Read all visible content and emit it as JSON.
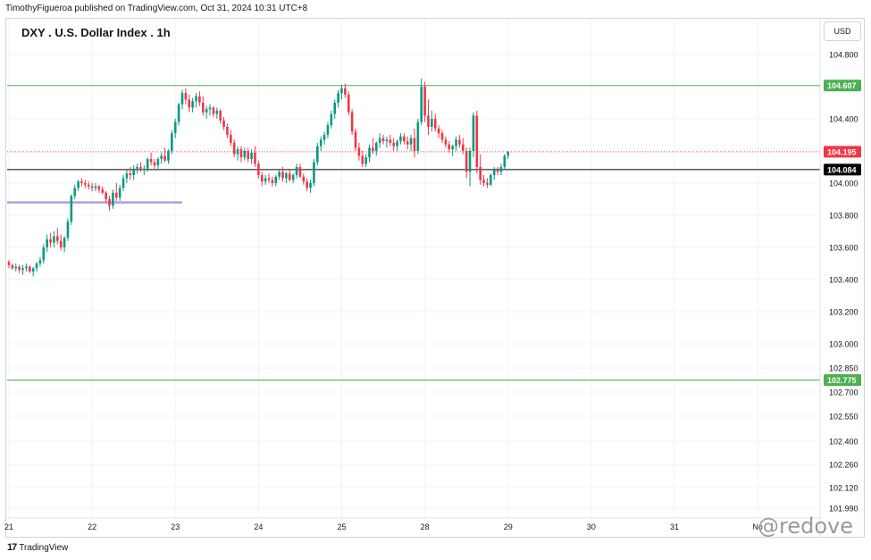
{
  "header": {
    "publisher_line": "TimothyFigueroa published on TradingView.com, Oct 31, 2024 10:31 UTC+8",
    "title": "DXY . U.S. Dollar Index . 1h",
    "currency": "USD"
  },
  "footer": {
    "brand": "TradingView",
    "watermark": "@redove"
  },
  "colors": {
    "up": "#089981",
    "down": "#f23645",
    "grid": "#f0f3fa",
    "resistance": "#4caf50",
    "current": "#f23645",
    "level": "#000000",
    "purple": "#b39ddb"
  },
  "chart_data": {
    "type": "candlestick",
    "y_ticks": [
      {
        "label": "104.800",
        "value": 104.8
      },
      {
        "label": "104.400",
        "value": 104.4
      },
      {
        "label": "104.000",
        "value": 104.0
      },
      {
        "label": "103.800",
        "value": 103.8
      },
      {
        "label": "103.600",
        "value": 103.6
      },
      {
        "label": "103.400",
        "value": 103.4
      },
      {
        "label": "103.200",
        "value": 103.2
      },
      {
        "label": "103.000",
        "value": 103.0
      },
      {
        "label": "102.850",
        "value": 102.85
      },
      {
        "label": "102.700",
        "value": 102.7
      },
      {
        "label": "102.550",
        "value": 102.55
      },
      {
        "label": "102.400",
        "value": 102.4
      },
      {
        "label": "102.260",
        "value": 102.26
      },
      {
        "label": "102.120",
        "value": 102.12
      },
      {
        "label": "101.990",
        "value": 101.99
      }
    ],
    "x_ticks": [
      {
        "label": "21",
        "x": 0
      },
      {
        "label": "22",
        "x": 24
      },
      {
        "label": "23",
        "x": 48
      },
      {
        "label": "24",
        "x": 72
      },
      {
        "label": "25",
        "x": 96
      },
      {
        "label": "28",
        "x": 120
      },
      {
        "label": "29",
        "x": 144
      },
      {
        "label": "30",
        "x": 168
      },
      {
        "label": "31",
        "x": 192
      },
      {
        "label": "No",
        "x": 216
      }
    ],
    "price_labels": [
      {
        "label": "104.607",
        "value": 104.607,
        "color": "#4caf50"
      },
      {
        "label": "104.195",
        "value": 104.195,
        "color": "#f23645"
      },
      {
        "label": "104.084",
        "value": 104.084,
        "color": "#000000"
      },
      {
        "label": "102.775",
        "value": 102.775,
        "color": "#4caf50"
      }
    ],
    "horizontal_lines": [
      {
        "value": 104.607,
        "style": "solid",
        "color": "#4caf50",
        "x_start": 0
      },
      {
        "value": 104.195,
        "style": "dotted",
        "color": "#f23645",
        "x_start": 0
      },
      {
        "value": 104.084,
        "style": "solid",
        "color": "#000000",
        "x_start": 0
      },
      {
        "value": 102.775,
        "style": "solid",
        "color": "#4caf50",
        "x_start": 0
      },
      {
        "value": 103.88,
        "style": "thick",
        "color": "#b39ddb",
        "x_start": 0,
        "x_end": 50
      }
    ],
    "ohlc": [
      [
        0,
        103.51,
        103.52,
        103.47,
        103.49
      ],
      [
        1,
        103.49,
        103.5,
        103.46,
        103.47
      ],
      [
        2,
        103.47,
        103.5,
        103.45,
        103.48
      ],
      [
        3,
        103.48,
        103.49,
        103.44,
        103.46
      ],
      [
        4,
        103.46,
        103.49,
        103.43,
        103.47
      ],
      [
        5,
        103.47,
        103.5,
        103.45,
        103.48
      ],
      [
        6,
        103.48,
        103.49,
        103.44,
        103.45
      ],
      [
        7,
        103.45,
        103.48,
        103.42,
        103.47
      ],
      [
        8,
        103.47,
        103.51,
        103.45,
        103.5
      ],
      [
        9,
        103.5,
        103.54,
        103.48,
        103.52
      ],
      [
        10,
        103.52,
        103.62,
        103.5,
        103.6
      ],
      [
        11,
        103.6,
        103.68,
        103.57,
        103.65
      ],
      [
        12,
        103.65,
        103.69,
        103.6,
        103.63
      ],
      [
        13,
        103.63,
        103.7,
        103.6,
        103.67
      ],
      [
        14,
        103.67,
        103.72,
        103.62,
        103.64
      ],
      [
        15,
        103.64,
        103.68,
        103.58,
        103.6
      ],
      [
        16,
        103.6,
        103.67,
        103.57,
        103.66
      ],
      [
        17,
        103.66,
        103.78,
        103.64,
        103.76
      ],
      [
        18,
        103.76,
        103.93,
        103.74,
        103.92
      ],
      [
        19,
        103.92,
        103.99,
        103.9,
        103.97
      ],
      [
        20,
        103.97,
        104.02,
        103.95,
        104.01
      ],
      [
        21,
        104.01,
        104.03,
        103.98,
        104.0
      ],
      [
        22,
        104.0,
        104.02,
        103.97,
        103.99
      ],
      [
        23,
        103.99,
        104.01,
        103.96,
        103.98
      ],
      [
        24,
        103.98,
        104.0,
        103.95,
        103.97
      ],
      [
        25,
        103.97,
        104.0,
        103.95,
        103.98
      ],
      [
        26,
        103.98,
        103.99,
        103.94,
        103.96
      ],
      [
        27,
        103.96,
        103.98,
        103.93,
        103.94
      ],
      [
        28,
        103.94,
        103.95,
        103.88,
        103.9
      ],
      [
        29,
        103.9,
        103.92,
        103.83,
        103.86
      ],
      [
        30,
        103.86,
        103.96,
        103.84,
        103.94
      ],
      [
        31,
        103.94,
        104.0,
        103.89,
        103.91
      ],
      [
        32,
        103.91,
        103.99,
        103.89,
        103.97
      ],
      [
        33,
        103.97,
        104.05,
        103.95,
        104.03
      ],
      [
        34,
        104.03,
        104.08,
        104.0,
        104.06
      ],
      [
        35,
        104.06,
        104.1,
        104.02,
        104.05
      ],
      [
        36,
        104.05,
        104.11,
        104.02,
        104.09
      ],
      [
        37,
        104.09,
        104.12,
        104.06,
        104.1
      ],
      [
        38,
        104.1,
        104.13,
        104.07,
        104.08
      ],
      [
        39,
        104.08,
        104.11,
        104.05,
        104.09
      ],
      [
        40,
        104.09,
        104.16,
        104.07,
        104.15
      ],
      [
        41,
        104.15,
        104.19,
        104.11,
        104.13
      ],
      [
        42,
        104.13,
        104.15,
        104.09,
        104.11
      ],
      [
        43,
        104.11,
        104.16,
        104.08,
        104.15
      ],
      [
        44,
        104.15,
        104.19,
        104.12,
        104.17
      ],
      [
        45,
        104.17,
        104.22,
        104.13,
        104.14
      ],
      [
        46,
        104.14,
        104.21,
        104.12,
        104.2
      ],
      [
        47,
        104.2,
        104.33,
        104.18,
        104.31
      ],
      [
        48,
        104.31,
        104.4,
        104.28,
        104.38
      ],
      [
        49,
        104.38,
        104.5,
        104.36,
        104.49
      ],
      [
        50,
        104.49,
        104.58,
        104.46,
        104.56
      ],
      [
        51,
        104.56,
        104.59,
        104.49,
        104.52
      ],
      [
        52,
        104.52,
        104.55,
        104.44,
        104.47
      ],
      [
        53,
        104.47,
        104.53,
        104.44,
        104.51
      ],
      [
        54,
        104.51,
        104.56,
        104.47,
        104.54
      ],
      [
        55,
        104.54,
        104.57,
        104.48,
        104.5
      ],
      [
        56,
        104.5,
        104.54,
        104.42,
        104.44
      ],
      [
        57,
        104.44,
        104.48,
        104.4,
        104.46
      ],
      [
        58,
        104.46,
        104.49,
        104.42,
        104.47
      ],
      [
        59,
        104.47,
        104.48,
        104.41,
        104.43
      ],
      [
        60,
        104.43,
        104.47,
        104.4,
        104.45
      ],
      [
        61,
        104.45,
        104.46,
        104.37,
        104.39
      ],
      [
        62,
        104.39,
        104.41,
        104.33,
        104.35
      ],
      [
        63,
        104.35,
        104.37,
        104.28,
        104.3
      ],
      [
        64,
        104.3,
        104.33,
        104.23,
        104.25
      ],
      [
        65,
        104.25,
        104.27,
        104.16,
        104.18
      ],
      [
        66,
        104.18,
        104.23,
        104.14,
        104.21
      ],
      [
        67,
        104.21,
        104.23,
        104.13,
        104.16
      ],
      [
        68,
        104.16,
        104.22,
        104.14,
        104.2
      ],
      [
        69,
        104.2,
        104.22,
        104.13,
        104.15
      ],
      [
        70,
        104.15,
        104.21,
        104.12,
        104.19
      ],
      [
        71,
        104.19,
        104.23,
        104.1,
        104.12
      ],
      [
        72,
        104.12,
        104.14,
        104.03,
        104.05
      ],
      [
        73,
        104.05,
        104.07,
        103.98,
        104.01
      ],
      [
        74,
        104.01,
        104.05,
        103.99,
        104.03
      ],
      [
        75,
        104.03,
        104.06,
        104.0,
        104.02
      ],
      [
        76,
        104.02,
        104.04,
        103.98,
        104.0
      ],
      [
        77,
        104.0,
        104.05,
        103.98,
        104.04
      ],
      [
        78,
        104.04,
        104.09,
        104.02,
        104.07
      ],
      [
        79,
        104.07,
        104.1,
        104.01,
        104.03
      ],
      [
        80,
        104.03,
        104.07,
        104.0,
        104.06
      ],
      [
        81,
        104.06,
        104.08,
        104.01,
        104.02
      ],
      [
        82,
        104.02,
        104.06,
        104.0,
        104.05
      ],
      [
        83,
        104.05,
        104.12,
        104.03,
        104.1
      ],
      [
        84,
        104.1,
        104.12,
        104.03,
        104.04
      ],
      [
        85,
        104.04,
        104.06,
        103.99,
        104.01
      ],
      [
        86,
        104.01,
        104.03,
        103.95,
        103.97
      ],
      [
        87,
        103.97,
        104.02,
        103.94,
        104.0
      ],
      [
        88,
        104.0,
        104.15,
        103.98,
        104.13
      ],
      [
        89,
        104.13,
        104.25,
        104.11,
        104.23
      ],
      [
        90,
        104.23,
        104.29,
        104.2,
        104.27
      ],
      [
        91,
        104.27,
        104.32,
        104.24,
        104.3
      ],
      [
        92,
        104.3,
        104.38,
        104.28,
        104.36
      ],
      [
        93,
        104.36,
        104.45,
        104.34,
        104.43
      ],
      [
        94,
        104.43,
        104.52,
        104.4,
        104.5
      ],
      [
        95,
        104.5,
        104.58,
        104.47,
        104.56
      ],
      [
        96,
        104.56,
        104.61,
        104.52,
        104.59
      ],
      [
        97,
        104.59,
        104.62,
        104.53,
        104.55
      ],
      [
        98,
        104.55,
        104.57,
        104.42,
        104.44
      ],
      [
        99,
        104.44,
        104.46,
        104.3,
        104.32
      ],
      [
        100,
        104.32,
        104.34,
        104.2,
        104.22
      ],
      [
        101,
        104.22,
        104.25,
        104.14,
        104.17
      ],
      [
        102,
        104.17,
        104.2,
        104.1,
        104.12
      ],
      [
        103,
        104.12,
        104.18,
        104.1,
        104.16
      ],
      [
        104,
        104.16,
        104.24,
        104.13,
        104.22
      ],
      [
        105,
        104.22,
        104.28,
        104.18,
        104.2
      ],
      [
        106,
        104.2,
        104.26,
        104.17,
        104.25
      ],
      [
        107,
        104.25,
        104.31,
        104.22,
        104.28
      ],
      [
        108,
        104.28,
        104.3,
        104.24,
        104.26
      ],
      [
        109,
        104.26,
        104.29,
        104.22,
        104.27
      ],
      [
        110,
        104.27,
        104.3,
        104.23,
        104.25
      ],
      [
        111,
        104.25,
        104.28,
        104.2,
        104.23
      ],
      [
        112,
        104.23,
        104.27,
        104.2,
        104.26
      ],
      [
        113,
        104.26,
        104.31,
        104.24,
        104.29
      ],
      [
        114,
        104.29,
        104.31,
        104.24,
        104.26
      ],
      [
        115,
        104.26,
        104.29,
        104.21,
        104.24
      ],
      [
        116,
        104.24,
        104.3,
        104.2,
        104.28
      ],
      [
        117,
        104.28,
        104.34,
        104.16,
        104.2
      ],
      [
        118,
        104.2,
        104.4,
        104.18,
        104.38
      ],
      [
        119,
        104.38,
        104.65,
        104.36,
        104.6
      ],
      [
        120,
        104.6,
        104.63,
        104.38,
        104.42
      ],
      [
        121,
        104.42,
        104.52,
        104.3,
        104.35
      ],
      [
        122,
        104.35,
        104.45,
        104.32,
        104.4
      ],
      [
        123,
        104.4,
        104.43,
        104.32,
        104.34
      ],
      [
        124,
        104.34,
        104.36,
        104.28,
        104.31
      ],
      [
        125,
        104.31,
        104.33,
        104.25,
        104.27
      ],
      [
        126,
        104.27,
        104.29,
        104.22,
        104.24
      ],
      [
        127,
        104.24,
        104.26,
        104.19,
        104.21
      ],
      [
        128,
        104.21,
        104.24,
        104.17,
        104.23
      ],
      [
        129,
        104.23,
        104.29,
        104.2,
        104.27
      ],
      [
        130,
        104.27,
        104.3,
        104.22,
        104.24
      ],
      [
        131,
        104.24,
        104.28,
        104.18,
        104.2
      ],
      [
        132,
        104.2,
        104.22,
        104.03,
        104.07
      ],
      [
        133,
        104.07,
        104.22,
        103.98,
        104.2
      ],
      [
        134,
        104.2,
        104.44,
        104.16,
        104.42
      ],
      [
        135,
        104.42,
        104.45,
        104.06,
        104.1
      ],
      [
        136,
        104.1,
        104.18,
        103.99,
        104.02
      ],
      [
        137,
        104.02,
        104.05,
        103.98,
        104.0
      ],
      [
        138,
        104.0,
        104.03,
        103.97,
        103.99
      ],
      [
        139,
        103.99,
        104.06,
        103.98,
        104.05
      ],
      [
        140,
        104.05,
        104.1,
        104.02,
        104.08
      ],
      [
        141,
        104.08,
        104.1,
        104.05,
        104.07
      ],
      [
        142,
        104.07,
        104.12,
        104.05,
        104.1
      ],
      [
        143,
        104.1,
        104.18,
        104.08,
        104.17
      ],
      [
        144,
        104.17,
        104.2,
        104.15,
        104.195
      ]
    ]
  }
}
